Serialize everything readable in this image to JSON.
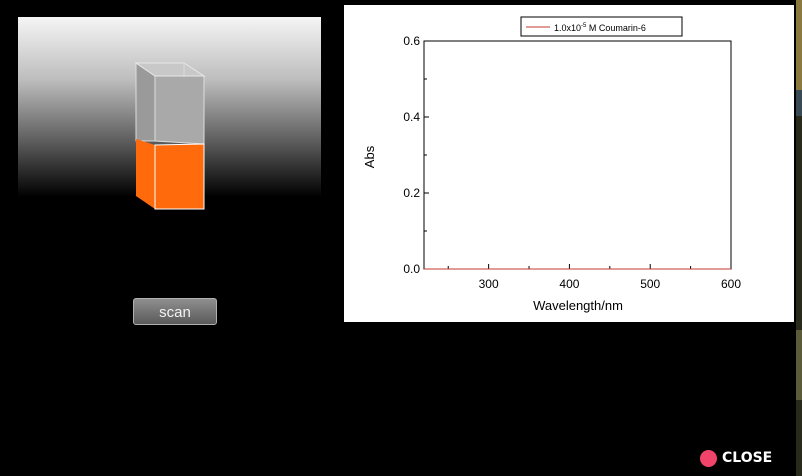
{
  "instrument": {
    "sample_color": "#ff6a0c",
    "scan_label": "scan"
  },
  "chart_data": {
    "type": "line",
    "xlabel": "Wavelength/nm",
    "ylabel": "Abs",
    "xticks": [
      "300",
      "400",
      "500",
      "600"
    ],
    "yticks": [
      "0.0",
      "0.2",
      "0.4",
      "0.6"
    ],
    "xlim": [
      220,
      600
    ],
    "ylim": [
      0,
      0.6
    ],
    "series": [
      {
        "name": "1.0x10-5 M Coumarin-6",
        "legend_text": "1.0x10",
        "legend_superscript": "-5",
        "legend_suffix": " M Coumarin-6",
        "color": "#c0392b",
        "x": [
          220,
          600
        ],
        "y": [
          0,
          0
        ]
      }
    ]
  },
  "footer": {
    "close_label": "CLOSE",
    "close_color": "#f2436a"
  }
}
